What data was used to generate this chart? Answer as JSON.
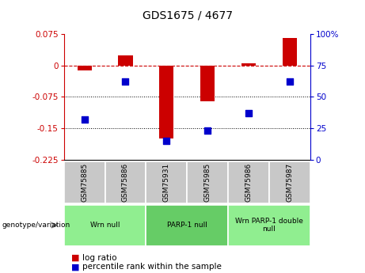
{
  "title": "GDS1675 / 4677",
  "samples": [
    "GSM75885",
    "GSM75886",
    "GSM75931",
    "GSM75985",
    "GSM75986",
    "GSM75987"
  ],
  "log_ratios": [
    -0.012,
    0.025,
    -0.175,
    -0.085,
    0.005,
    0.065
  ],
  "percentile_ranks": [
    32,
    62,
    15,
    23,
    37,
    62
  ],
  "ylim_left": [
    -0.225,
    0.075
  ],
  "ylim_right": [
    0,
    100
  ],
  "yticks_left": [
    0.075,
    0,
    -0.075,
    -0.15,
    -0.225
  ],
  "yticks_right": [
    100,
    75,
    50,
    25,
    0
  ],
  "bar_color": "#cc0000",
  "dot_color": "#0000cc",
  "groups": [
    {
      "label": "Wrn null",
      "start": 0,
      "end": 2,
      "color": "#90ee90"
    },
    {
      "label": "PARP-1 null",
      "start": 2,
      "end": 4,
      "color": "#66cc66"
    },
    {
      "label": "Wrn PARP-1 double\nnull",
      "start": 4,
      "end": 6,
      "color": "#90ee90"
    }
  ],
  "legend_log_ratio_label": "log ratio",
  "legend_percentile_label": "percentile rank within the sample",
  "genotype_label": "genotype/variation",
  "bg_color": "#ffffff",
  "plot_bg_color": "#ffffff",
  "zero_line_color": "#cc0000",
  "bar_width": 0.35,
  "dot_size": 28,
  "sample_box_color": "#c8c8c8",
  "title_fontsize": 10,
  "axis_fontsize": 7.5,
  "label_fontsize": 6.5,
  "legend_fontsize": 7.5
}
